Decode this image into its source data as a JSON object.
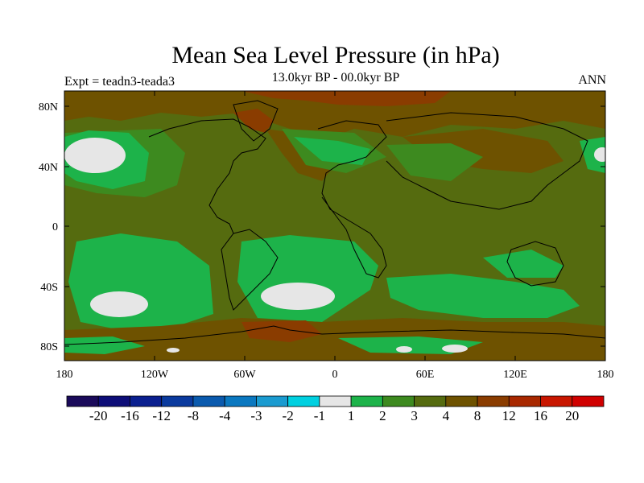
{
  "title": "Mean Sea Level Pressure (in hPa)",
  "subtitle": "13.0kyr BP - 00.0kyr BP",
  "left_label": "Expt = teadn3-teada3",
  "right_label": "ANN",
  "map": {
    "lon_ticks": [
      "180",
      "120W",
      "60W",
      "0",
      "60E",
      "120E",
      "180"
    ],
    "lat_ticks": [
      "80N",
      "40N",
      "0",
      "40S",
      "80S"
    ]
  },
  "colorbar": {
    "labels": [
      "-20",
      "-16",
      "-12",
      "-8",
      "-4",
      "-3",
      "-2",
      "-1",
      "1",
      "2",
      "3",
      "4",
      "8",
      "12",
      "16",
      "20"
    ],
    "colors": [
      "#1a0a5a",
      "#0d0d78",
      "#0a1f8f",
      "#0a3a9e",
      "#0a5aae",
      "#0a78c0",
      "#1a9bd0",
      "#00d0e0",
      "#e6e6e6",
      "#1db34a",
      "#3d8a1f",
      "#556b0f",
      "#6e5200",
      "#8a3c00",
      "#a82800",
      "#c81600",
      "#d00000"
    ]
  },
  "colors": {
    "green_light": "#1db34a",
    "green_mid": "#3d8a1f",
    "olive": "#556b0f",
    "brown": "#6e5200",
    "red_brown": "#8a3c00",
    "white_region": "#e6e6e6"
  }
}
